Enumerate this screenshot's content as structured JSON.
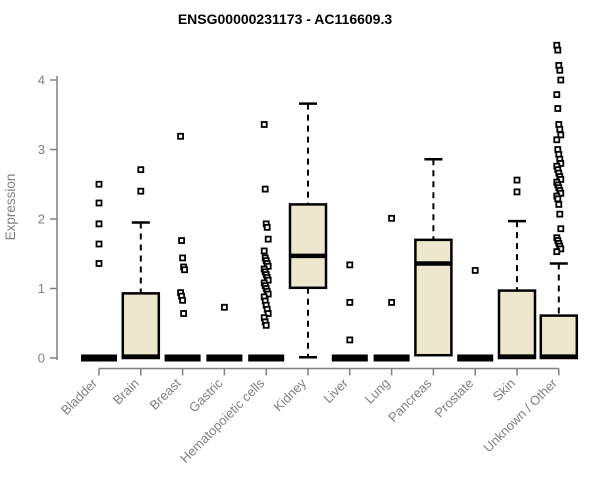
{
  "chart_data": {
    "type": "boxplot",
    "title": "ENSG00000231173 - AC116609.3",
    "ylabel": "Expression",
    "xlabel": "",
    "ylim": [
      0,
      4.07
    ],
    "yticks": [
      0,
      1,
      2,
      3,
      4
    ],
    "grid": false,
    "legend": null,
    "categories": [
      "Bladder",
      "Brain",
      "Breast",
      "Gastric",
      "Hematopoietic cells",
      "Kidney",
      "Liver",
      "Lung",
      "Pancreas",
      "Prostate",
      "Skin",
      "Unknown / Other"
    ],
    "boxes": [
      {
        "category": "Bladder",
        "q1": 0,
        "median": 0,
        "q3": 0,
        "whisker_low": 0,
        "whisker_high": 0,
        "outliers": [
          2.5,
          2.23,
          1.93,
          1.64,
          1.36
        ]
      },
      {
        "category": "Brain",
        "q1": 0,
        "median": 0.02,
        "q3": 0.93,
        "whisker_low": 0,
        "whisker_high": 1.95,
        "outliers": [
          2.71,
          2.4
        ]
      },
      {
        "category": "Breast",
        "q1": 0,
        "median": 0,
        "q3": 0,
        "whisker_low": 0,
        "whisker_high": 0,
        "outliers": [
          3.19,
          1.69,
          1.44,
          1.31,
          1.27,
          0.94,
          0.89,
          0.83,
          0.64
        ]
      },
      {
        "category": "Gastric",
        "q1": 0,
        "median": 0,
        "q3": 0,
        "whisker_low": 0,
        "whisker_high": 0,
        "outliers": [
          0.73
        ]
      },
      {
        "category": "Hematopoietic cells",
        "q1": 0,
        "median": 0,
        "q3": 0,
        "whisker_low": 0,
        "whisker_high": 0,
        "outliers": [
          3.36,
          2.43,
          1.93,
          1.88,
          1.71,
          1.54,
          1.44,
          1.4,
          1.36,
          1.32,
          1.28,
          1.24,
          1.2,
          1.16,
          1.12,
          1.08,
          1.04,
          1.0,
          0.96,
          0.92,
          0.88,
          0.82,
          0.76,
          0.7,
          0.64,
          0.58,
          0.52,
          0.47
        ]
      },
      {
        "category": "Kidney",
        "q1": 1.01,
        "median": 1.47,
        "q3": 2.21,
        "whisker_low": 0.01,
        "whisker_high": 3.66,
        "outliers": []
      },
      {
        "category": "Liver",
        "q1": 0,
        "median": 0,
        "q3": 0,
        "whisker_low": 0,
        "whisker_high": 0,
        "outliers": [
          1.34,
          0.8,
          0.26
        ]
      },
      {
        "category": "Lung",
        "q1": 0,
        "median": 0,
        "q3": 0,
        "whisker_low": 0,
        "whisker_high": 0,
        "outliers": [
          2.01,
          0.8
        ]
      },
      {
        "category": "Pancreas",
        "q1": 0.04,
        "median": 1.36,
        "q3": 1.7,
        "whisker_low": 0.04,
        "whisker_high": 2.86,
        "outliers": []
      },
      {
        "category": "Prostate",
        "q1": 0,
        "median": 0,
        "q3": 0,
        "whisker_low": 0,
        "whisker_high": 0,
        "outliers": [
          1.26
        ]
      },
      {
        "category": "Skin",
        "q1": 0,
        "median": 0.02,
        "q3": 0.97,
        "whisker_low": 0,
        "whisker_high": 1.97,
        "outliers": [
          2.56,
          2.39
        ]
      },
      {
        "category": "Unknown / Other",
        "q1": 0,
        "median": 0.02,
        "q3": 0.61,
        "whisker_low": 0,
        "whisker_high": 1.36,
        "outliers": [
          4.5,
          4.43,
          4.21,
          4.14,
          4.0,
          3.79,
          3.59,
          3.36,
          3.29,
          3.21,
          3.14,
          3.0,
          2.93,
          2.86,
          2.8,
          2.76,
          2.71,
          2.66,
          2.61,
          2.57,
          2.53,
          2.49,
          2.45,
          2.41,
          2.37,
          2.33,
          2.29,
          2.21,
          2.07,
          1.86,
          1.73,
          1.69,
          1.65,
          1.61,
          1.57,
          1.53
        ]
      }
    ],
    "colors": {
      "box_fill": "#ede8cd",
      "box_stroke": "#000000",
      "median": "#000000",
      "whisker": "#000000",
      "outlier": "#000000",
      "axis": "#808080",
      "tick_label": "#808080",
      "title": "#000000",
      "background": "#ffffff"
    }
  }
}
